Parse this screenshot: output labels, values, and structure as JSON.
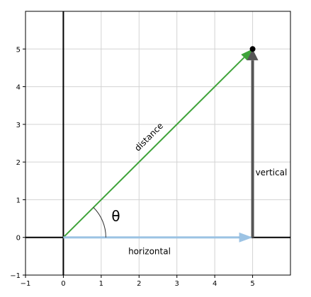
{
  "chart_data": {
    "type": "line",
    "title": "",
    "xlabel": "",
    "ylabel": "",
    "xlim": [
      -1,
      6
    ],
    "ylim": [
      -1,
      6
    ],
    "x_ticks": [
      -1,
      0,
      1,
      2,
      3,
      4,
      5
    ],
    "y_ticks": [
      -1,
      0,
      1,
      2,
      3,
      4,
      5
    ],
    "x_tick_labels": [
      "−1",
      "0",
      "1",
      "2",
      "3",
      "4",
      "5"
    ],
    "y_tick_labels": [
      "−1",
      "0",
      "1",
      "2",
      "3",
      "4",
      "5"
    ],
    "grid": true,
    "point": {
      "x": 5,
      "y": 5
    },
    "vectors": [
      {
        "label": "distance",
        "from": [
          0,
          0
        ],
        "to": [
          5,
          5
        ],
        "color": "#3fa33a"
      },
      {
        "label": "horizontal",
        "from": [
          0,
          0
        ],
        "to": [
          5,
          0
        ],
        "color": "#9cc3e4"
      },
      {
        "label": "vertical",
        "from": [
          5,
          0
        ],
        "to": [
          5,
          5
        ],
        "color": "#555555"
      }
    ],
    "angle": {
      "label": "θ",
      "vertex": [
        0,
        0
      ],
      "from_deg": 0,
      "to_deg": 45
    }
  }
}
